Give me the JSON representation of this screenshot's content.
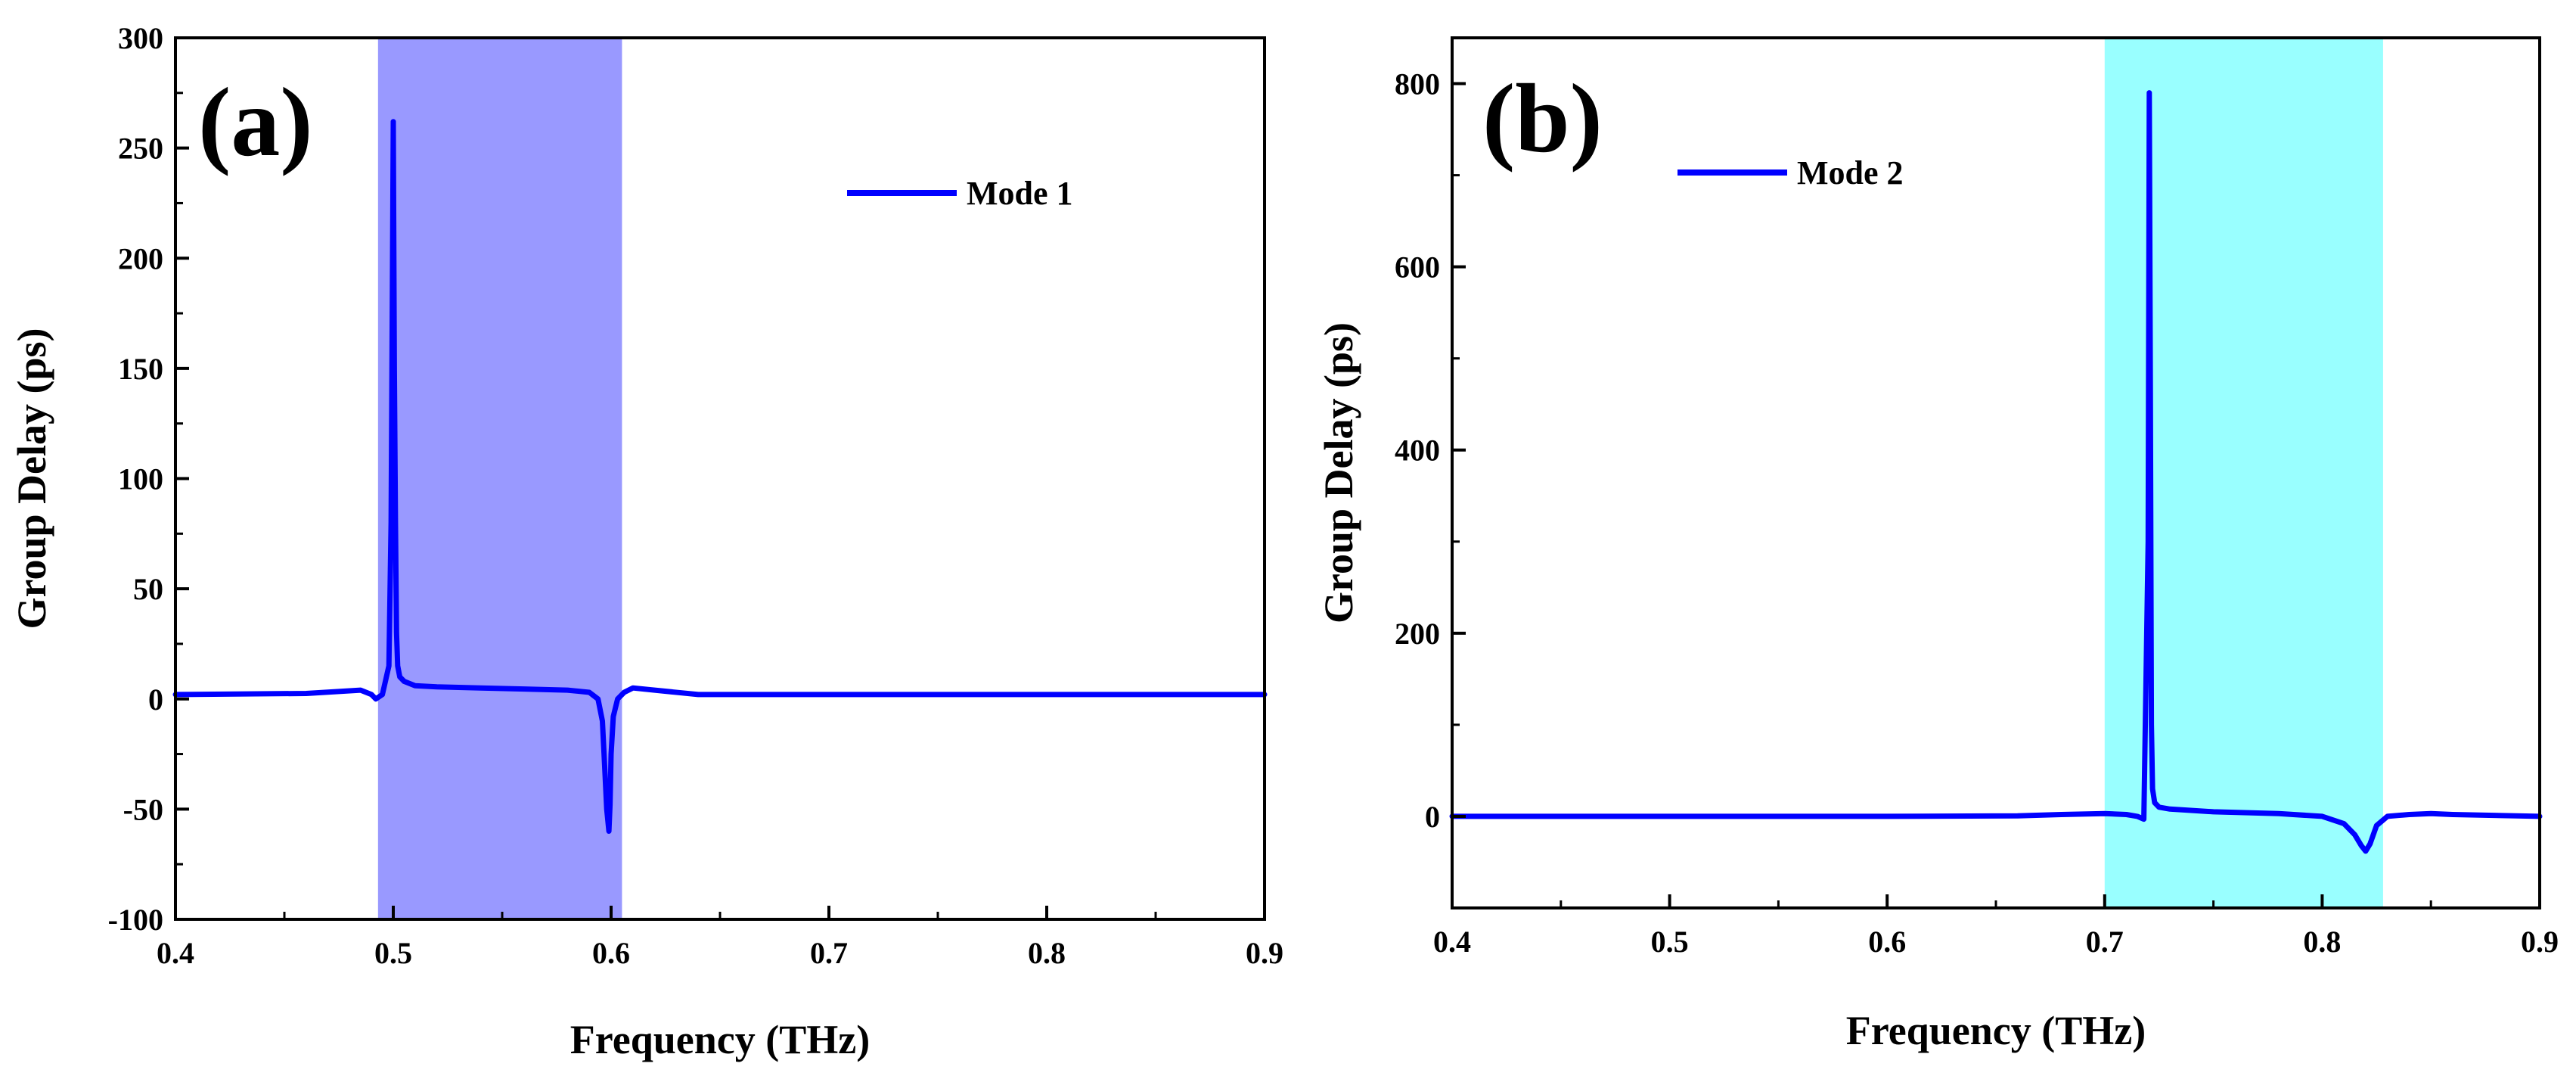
{
  "chart_data": [
    {
      "type": "line",
      "panel_label": "(a)",
      "xlabel": "Frequency (THz)",
      "ylabel": "Group Delay (ps)",
      "xlim": [
        0.4,
        0.9
      ],
      "ylim": [
        -100,
        300
      ],
      "xticks": [
        0.4,
        0.5,
        0.6,
        0.7,
        0.8,
        0.9
      ],
      "xtick_labels": [
        "0.4",
        "0.5",
        "0.6",
        "0.7",
        "0.8",
        "0.9"
      ],
      "yticks": [
        -100,
        -50,
        0,
        50,
        100,
        150,
        200,
        250,
        300
      ],
      "ytick_labels": [
        "-100",
        "-50",
        "0",
        "50",
        "100",
        "150",
        "200",
        "250",
        "300"
      ],
      "grid": false,
      "legend_position": "top-right",
      "highlight_band": {
        "x_range": [
          0.493,
          0.605
        ],
        "color": "#9999ff"
      },
      "series": [
        {
          "name": "Mode 1",
          "color": "#0000ff",
          "x": [
            0.4,
            0.46,
            0.485,
            0.49,
            0.492,
            0.495,
            0.498,
            0.499,
            0.5,
            0.5005,
            0.501,
            0.5015,
            0.502,
            0.503,
            0.505,
            0.51,
            0.52,
            0.54,
            0.56,
            0.58,
            0.59,
            0.594,
            0.596,
            0.597,
            0.598,
            0.599,
            0.5995,
            0.6,
            0.601,
            0.603,
            0.606,
            0.61,
            0.62,
            0.64,
            0.7,
            0.8,
            0.9
          ],
          "y": [
            2,
            2.5,
            4,
            2,
            0,
            2,
            15,
            80,
            262,
            150,
            80,
            30,
            15,
            10,
            8,
            6,
            5.5,
            5,
            4.5,
            4,
            3,
            0,
            -10,
            -30,
            -50,
            -60,
            -48,
            -25,
            -8,
            0,
            3,
            5,
            4,
            2,
            2,
            2,
            2
          ]
        }
      ]
    },
    {
      "type": "line",
      "panel_label": "(b)",
      "xlabel": "Frequency (THz)",
      "ylabel": "Group Delay (ps)",
      "xlim": [
        0.4,
        0.9
      ],
      "ylim": [
        -100,
        850
      ],
      "xticks": [
        0.4,
        0.5,
        0.6,
        0.7,
        0.8,
        0.9
      ],
      "xtick_labels": [
        "0.4",
        "0.5",
        "0.6",
        "0.7",
        "0.8",
        "0.9"
      ],
      "yticks": [
        0,
        200,
        400,
        600,
        800
      ],
      "ytick_labels": [
        "0",
        "200",
        "400",
        "600",
        "800"
      ],
      "grid": false,
      "legend_position": "top-left",
      "highlight_band": {
        "x_range": [
          0.7,
          0.828
        ],
        "color": "#99ffff"
      },
      "series": [
        {
          "name": "Mode 2",
          "color": "#0000ff",
          "x": [
            0.4,
            0.5,
            0.6,
            0.66,
            0.68,
            0.7,
            0.71,
            0.715,
            0.718,
            0.72,
            0.7205,
            0.721,
            0.7215,
            0.722,
            0.723,
            0.725,
            0.73,
            0.75,
            0.78,
            0.8,
            0.81,
            0.815,
            0.818,
            0.82,
            0.822,
            0.825,
            0.83,
            0.84,
            0.85,
            0.86,
            0.9
          ],
          "y": [
            0,
            0,
            0,
            0.5,
            2,
            3,
            2,
            0,
            -3,
            300,
            790,
            470,
            100,
            30,
            15,
            10,
            8,
            5,
            3,
            0,
            -8,
            -20,
            -32,
            -38,
            -30,
            -10,
            0,
            2,
            3,
            2,
            0
          ]
        }
      ]
    }
  ]
}
